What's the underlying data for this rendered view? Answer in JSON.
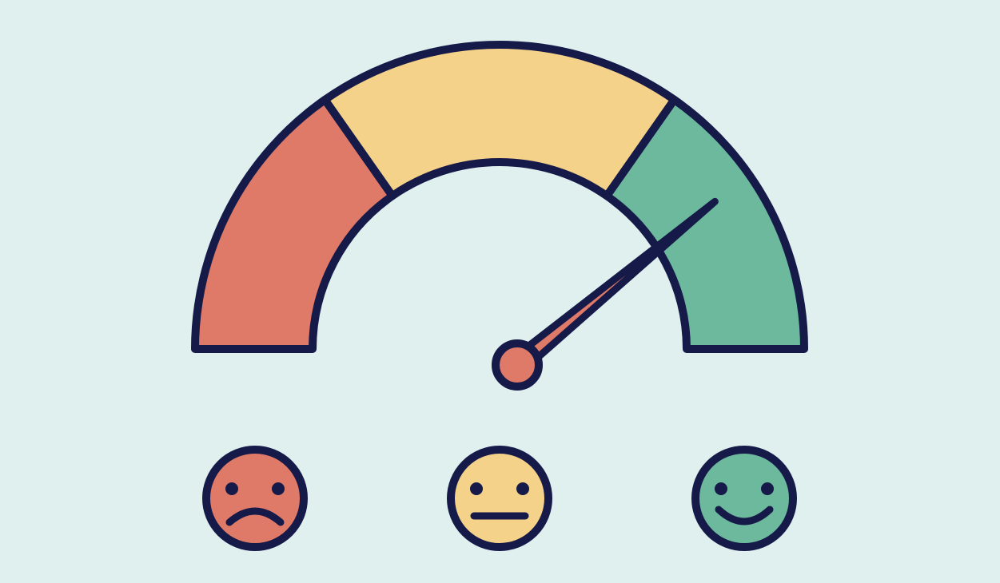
{
  "colors": {
    "background": "#e0f0ef",
    "outline": "#161a48",
    "red": "#e07a68",
    "yellow": "#f5d28a",
    "green": "#6db99e"
  },
  "gauge": {
    "segments": [
      {
        "name": "bad",
        "color": "red"
      },
      {
        "name": "neutral",
        "color": "yellow"
      },
      {
        "name": "good",
        "color": "green"
      }
    ],
    "needle_value_percent": 78
  },
  "faces": [
    {
      "mood": "sad",
      "icon": "sad-face-icon",
      "color": "red"
    },
    {
      "mood": "neutral",
      "icon": "neutral-face-icon",
      "color": "yellow"
    },
    {
      "mood": "happy",
      "icon": "happy-face-icon",
      "color": "green"
    }
  ]
}
